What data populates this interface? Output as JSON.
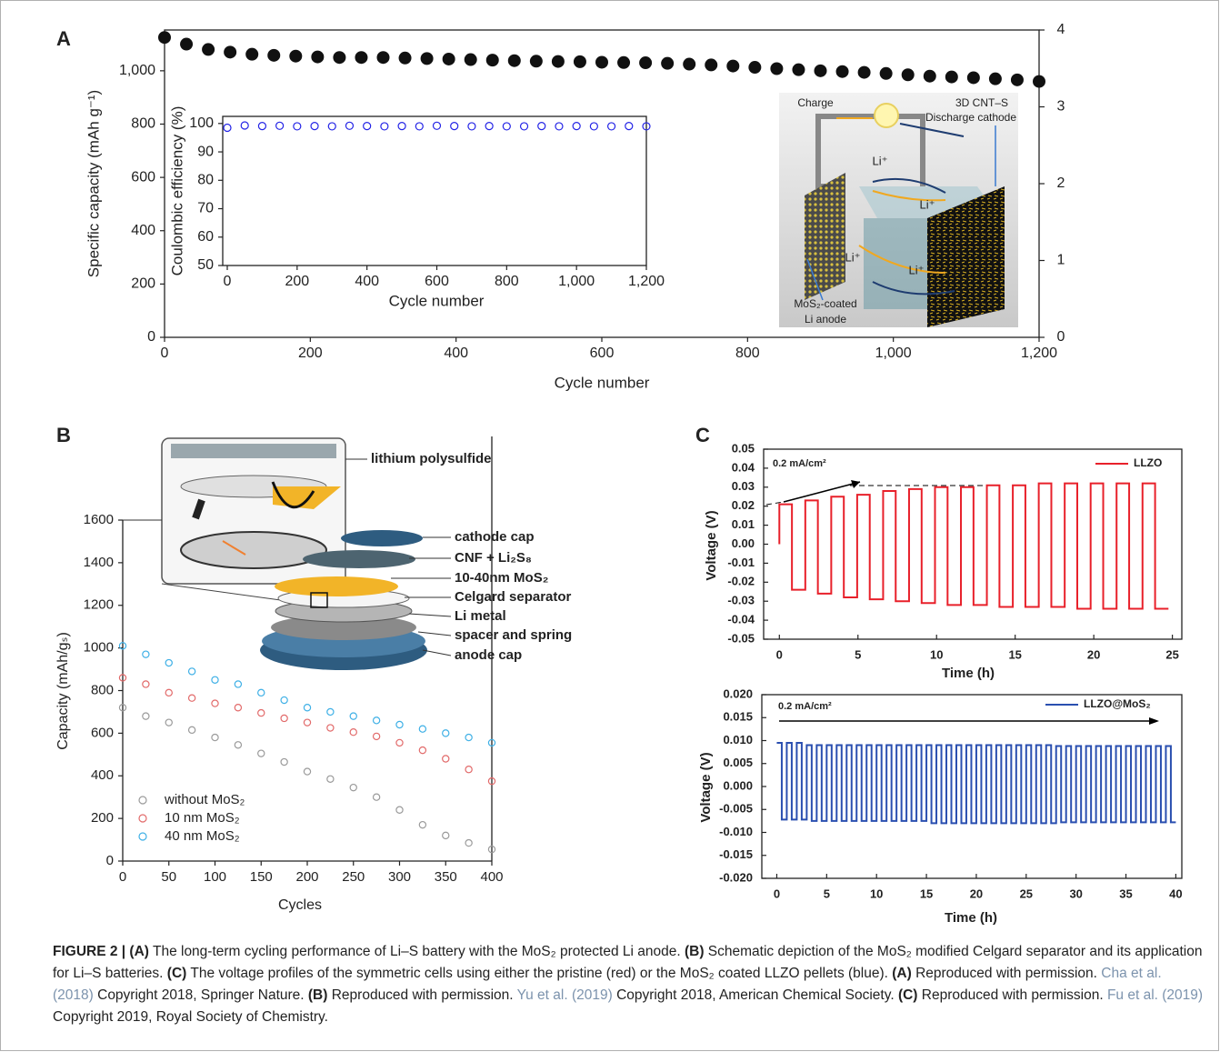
{
  "chart_data": [
    {
      "type": "scatter",
      "panel": "A",
      "xlabel": "Cycle number",
      "ylabel": "Specific capacity (mAh g⁻¹)",
      "color": "#111111",
      "hollow": false,
      "x": [
        0,
        30,
        60,
        90,
        120,
        150,
        180,
        210,
        240,
        270,
        300,
        330,
        360,
        390,
        420,
        450,
        480,
        510,
        540,
        570,
        600,
        630,
        660,
        690,
        720,
        750,
        780,
        810,
        840,
        870,
        900,
        930,
        960,
        990,
        1020,
        1050,
        1080,
        1110,
        1140,
        1170,
        1200
      ],
      "values": [
        1125,
        1100,
        1080,
        1070,
        1062,
        1058,
        1055,
        1052,
        1050,
        1050,
        1050,
        1048,
        1046,
        1044,
        1042,
        1040,
        1038,
        1036,
        1035,
        1034,
        1032,
        1031,
        1030,
        1028,
        1025,
        1022,
        1018,
        1013,
        1008,
        1004,
        1000,
        997,
        994,
        990,
        985,
        980,
        977,
        974,
        970,
        966,
        960
      ],
      "xlim": [
        0,
        1200
      ],
      "xticks": [
        0,
        200,
        400,
        600,
        800,
        {
          "value": 1000,
          "label": "1,000"
        },
        {
          "value": 1200,
          "label": "1,200"
        }
      ],
      "ylim": [
        0,
        1153
      ],
      "yticks": [
        0,
        200,
        400,
        600,
        800,
        {
          "value": 1000,
          "label": "1,000"
        }
      ],
      "y2lim": [
        0,
        4
      ],
      "y2ticks": [
        0,
        1,
        2,
        3,
        4
      ],
      "annotations": [
        {
          "text": "Charge"
        },
        {
          "text": "3D CNT–S"
        },
        {
          "text": "Discharge cathode"
        },
        {
          "text": "Li⁺"
        },
        {
          "text": "Li⁺"
        },
        {
          "text": "Li⁺"
        },
        {
          "text": "Li⁺"
        },
        {
          "text": "MoS₂-coated"
        },
        {
          "text": "Li anode"
        }
      ]
    },
    {
      "type": "scatter",
      "xlabel": "Cycle number",
      "ylabel": "Coulombic efficiency (%)",
      "color": "#2323e6",
      "hollow": true,
      "x": [
        0,
        50,
        100,
        150,
        200,
        250,
        300,
        350,
        400,
        450,
        500,
        550,
        600,
        650,
        700,
        750,
        800,
        850,
        900,
        950,
        1000,
        1050,
        1100,
        1150,
        1200
      ],
      "values": [
        98.5,
        99.3,
        99.1,
        99.2,
        99,
        99.1,
        99,
        99.2,
        99.1,
        99,
        99.1,
        99,
        99.2,
        99.1,
        99,
        99.1,
        99,
        99,
        99.1,
        99,
        99.1,
        99,
        99,
        99.1,
        99
      ],
      "xlim": [
        0,
        1200
      ],
      "xticks": [
        0,
        200,
        400,
        600,
        800,
        {
          "value": 1000,
          "label": "1,000"
        },
        {
          "value": 1200,
          "label": "1,200"
        }
      ],
      "ylim": [
        50,
        102.5
      ],
      "yticks": [
        50,
        60,
        70,
        80,
        90,
        100
      ]
    },
    {
      "type": "scatter",
      "panel": "B",
      "xlabel": "Cycles",
      "ylabel": "Capacity (mAh/gₛ)",
      "hollow": true,
      "legend": "lower left",
      "x": [
        0,
        25,
        50,
        75,
        100,
        125,
        150,
        175,
        200,
        225,
        250,
        275,
        300,
        325,
        350,
        375,
        400
      ],
      "series": [
        {
          "name": "without MoS₂",
          "color": "#9a9a9a",
          "values": [
            720,
            680,
            650,
            615,
            580,
            545,
            505,
            465,
            420,
            385,
            345,
            300,
            240,
            170,
            120,
            85,
            55
          ]
        },
        {
          "name": "10 nm MoS₂",
          "color": "#e26a6a",
          "values": [
            860,
            830,
            790,
            765,
            740,
            720,
            695,
            670,
            650,
            625,
            605,
            585,
            555,
            520,
            480,
            430,
            375
          ]
        },
        {
          "name": "40 nm MoS₂",
          "color": "#3fb0e6",
          "values": [
            1010,
            970,
            930,
            890,
            850,
            830,
            790,
            755,
            720,
            700,
            680,
            660,
            640,
            620,
            600,
            580,
            555
          ]
        }
      ],
      "xlim": [
        0,
        400
      ],
      "xticks": [
        0,
        50,
        100,
        150,
        200,
        250,
        300,
        350,
        400
      ],
      "ylim": [
        0,
        1600
      ],
      "yticks": [
        0,
        200,
        400,
        600,
        800,
        1000,
        1200,
        1400,
        1600
      ],
      "annotations": [
        {
          "text": "lithium polysulfide"
        },
        {
          "text": "cathode cap"
        },
        {
          "text": "CNF + Li₂S₈"
        },
        {
          "text": "10-40nm MoS₂",
          "color": "#e8202a"
        },
        {
          "text": "Celgard separator"
        },
        {
          "text": "Li metal"
        },
        {
          "text": "spacer and spring"
        },
        {
          "text": "anode cap"
        }
      ]
    },
    {
      "type": "line",
      "panel": "C",
      "xlabel": "Time (h)",
      "ylabel": "Voltage (V)",
      "legend": "upper right",
      "x": [
        0,
        0,
        0.8,
        0.8,
        1.65,
        1.65,
        2.45,
        2.45,
        3.3,
        3.3,
        4.1,
        4.1,
        4.95,
        4.95,
        5.75,
        5.75,
        6.6,
        6.6,
        7.4,
        7.4,
        8.25,
        8.25,
        9.05,
        9.05,
        9.9,
        9.9,
        10.7,
        10.7,
        11.55,
        11.55,
        12.35,
        12.35,
        13.2,
        13.2,
        14,
        14,
        14.85,
        14.85,
        15.65,
        15.65,
        16.5,
        16.5,
        17.3,
        17.3,
        18.15,
        18.15,
        18.95,
        18.95,
        19.8,
        19.8,
        20.6,
        20.6,
        21.45,
        21.45,
        22.25,
        22.25,
        23.1,
        23.1,
        23.9,
        23.9,
        24.75
      ],
      "series": [
        {
          "name": "LLZO",
          "color": "#e8202a",
          "values": [
            0,
            0.021,
            0.021,
            -0.024,
            -0.024,
            0.023,
            0.023,
            -0.026,
            -0.026,
            0.025,
            0.025,
            -0.028,
            -0.028,
            0.026,
            0.026,
            -0.029,
            -0.029,
            0.028,
            0.028,
            -0.03,
            -0.03,
            0.029,
            0.029,
            -0.031,
            -0.031,
            0.03,
            0.03,
            -0.032,
            -0.032,
            0.03,
            0.03,
            -0.032,
            -0.032,
            0.031,
            0.031,
            -0.033,
            -0.033,
            0.031,
            0.031,
            -0.033,
            -0.033,
            0.032,
            0.032,
            -0.033,
            -0.033,
            0.032,
            0.032,
            -0.034,
            -0.034,
            0.032,
            0.032,
            -0.034,
            -0.034,
            0.032,
            0.032,
            -0.034,
            -0.034,
            0.032,
            0.032,
            -0.034,
            -0.034
          ]
        }
      ],
      "xlim": [
        -1,
        25.6
      ],
      "xticks": [
        0,
        5,
        10,
        15,
        20,
        25
      ],
      "ylim": [
        -0.05,
        0.05
      ],
      "yticks": [
        0.05,
        0.04,
        0.03,
        0.02,
        0.01,
        {
          "value": 0,
          "label": "0.00"
        },
        -0.01,
        -0.02,
        -0.03,
        -0.04,
        -0.05
      ],
      "annotations": [
        {
          "text": "0.2 mA/cm²"
        }
      ]
    },
    {
      "type": "line",
      "xlabel": "Time (h)",
      "ylabel": "Voltage (V)",
      "legend": "upper right",
      "x": [
        0,
        0.5,
        0.5,
        1,
        1,
        1.5,
        1.5,
        2,
        2,
        2.5,
        2.5,
        3,
        3,
        3.5,
        3.5,
        4,
        4,
        4.5,
        4.5,
        5,
        5,
        5.5,
        5.5,
        6,
        6,
        6.5,
        6.5,
        7,
        7,
        7.5,
        7.5,
        8,
        8,
        8.5,
        8.5,
        9,
        9,
        9.5,
        9.5,
        10,
        10,
        10.5,
        10.5,
        11,
        11,
        11.5,
        11.5,
        12,
        12,
        12.5,
        12.5,
        13,
        13,
        13.5,
        13.5,
        14,
        14,
        14.5,
        14.5,
        15,
        15,
        15.5,
        15.5,
        16,
        16,
        16.5,
        16.5,
        17,
        17,
        17.5,
        17.5,
        18,
        18,
        18.5,
        18.5,
        19,
        19,
        19.5,
        19.5,
        20,
        20,
        20.5,
        20.5,
        21,
        21,
        21.5,
        21.5,
        22,
        22,
        22.5,
        22.5,
        23,
        23,
        23.5,
        23.5,
        24,
        24,
        24.5,
        24.5,
        25,
        25,
        25.5,
        25.5,
        26,
        26,
        26.5,
        26.5,
        27,
        27,
        27.5,
        27.5,
        28,
        28,
        28.5,
        28.5,
        29,
        29,
        29.5,
        29.5,
        30,
        30,
        30.5,
        30.5,
        31,
        31,
        31.5,
        31.5,
        32,
        32,
        32.5,
        32.5,
        33,
        33,
        33.5,
        33.5,
        34,
        34,
        34.5,
        34.5,
        35,
        35,
        35.5,
        35.5,
        36,
        36,
        36.5,
        36.5,
        37,
        37,
        37.5,
        37.5,
        38,
        38,
        38.5,
        38.5,
        39,
        39,
        39.5,
        39.5,
        40
      ],
      "series": [
        {
          "name": "LLZO@MoS₂",
          "color": "#2a4fb0",
          "values": [
            0.0095,
            0.0095,
            -0.0072,
            -0.0072,
            0.0095,
            0.0095,
            -0.0072,
            -0.0072,
            0.0095,
            0.0095,
            -0.0072,
            -0.0072,
            0.009,
            0.009,
            -0.0075,
            -0.0075,
            0.009,
            0.009,
            -0.0075,
            -0.0075,
            0.009,
            0.009,
            -0.0075,
            -0.0075,
            0.009,
            0.009,
            -0.0075,
            -0.0075,
            0.009,
            0.009,
            -0.0075,
            -0.0075,
            0.009,
            0.009,
            -0.0075,
            -0.0075,
            0.009,
            0.009,
            -0.0075,
            -0.0075,
            0.009,
            0.009,
            -0.0075,
            -0.0075,
            0.009,
            0.009,
            -0.0075,
            -0.0075,
            0.009,
            0.009,
            -0.0075,
            -0.0075,
            0.009,
            0.009,
            -0.0075,
            -0.0075,
            0.009,
            0.009,
            -0.0075,
            -0.0075,
            0.009,
            0.009,
            -0.008,
            -0.008,
            0.009,
            0.009,
            -0.008,
            -0.008,
            0.009,
            0.009,
            -0.008,
            -0.008,
            0.009,
            0.009,
            -0.008,
            -0.008,
            0.009,
            0.009,
            -0.008,
            -0.008,
            0.009,
            0.009,
            -0.008,
            -0.008,
            0.009,
            0.009,
            -0.008,
            -0.008,
            0.009,
            0.009,
            -0.008,
            -0.008,
            0.009,
            0.009,
            -0.008,
            -0.008,
            0.009,
            0.009,
            -0.008,
            -0.008,
            0.009,
            0.009,
            -0.008,
            -0.008,
            0.009,
            0.009,
            -0.008,
            -0.008,
            0.009,
            0.009,
            -0.008,
            -0.008,
            0.0088,
            0.0088,
            -0.0078,
            -0.0078,
            0.0088,
            0.0088,
            -0.0078,
            -0.0078,
            0.0088,
            0.0088,
            -0.0078,
            -0.0078,
            0.0088,
            0.0088,
            -0.0078,
            -0.0078,
            0.0088,
            0.0088,
            -0.0078,
            -0.0078,
            0.0088,
            0.0088,
            -0.0078,
            -0.0078,
            0.0088,
            0.0088,
            -0.0078,
            -0.0078,
            0.0088,
            0.0088,
            -0.0078,
            -0.0078,
            0.0088,
            0.0088,
            -0.0078,
            -0.0078,
            0.0088,
            0.0088,
            -0.0078,
            -0.0078,
            0.0088,
            0.0088,
            -0.0078,
            -0.0078,
            0.0088,
            0.0088,
            -0.0078,
            -0.0078
          ]
        }
      ],
      "xlim": [
        -1.5,
        40.6
      ],
      "xticks": [
        0,
        5,
        10,
        15,
        20,
        25,
        30,
        35,
        40
      ],
      "ylim": [
        -0.02,
        0.02
      ],
      "yticks": [
        {
          "value": 0.02,
          "label": "0.020"
        },
        0.015,
        {
          "value": 0.01,
          "label": "0.010"
        },
        0.005,
        {
          "value": 0,
          "label": "0.000"
        },
        -0.005,
        {
          "value": -0.01,
          "label": "-0.010"
        },
        -0.015,
        {
          "value": -0.02,
          "label": "-0.020"
        }
      ],
      "annotations": [
        {
          "text": "0.2 mA/cm²"
        }
      ]
    }
  ],
  "caption": [
    {
      "text": "FIGURE 2 | (A)",
      "style": "bold"
    },
    {
      "text": " The long-term cycling performance of Li–S battery with the MoS₂ protected Li anode. "
    },
    {
      "text": "(B)",
      "style": "bold"
    },
    {
      "text": " Schematic depiction of the MoS₂ modified Celgard separator and its application for Li–S batteries. "
    },
    {
      "text": "(C)",
      "style": "bold"
    },
    {
      "text": " The voltage profiles of the symmetric cells using either the pristine (red) or the MoS₂ coated LLZO pellets (blue). "
    },
    {
      "text": "(A)",
      "style": "bold"
    },
    {
      "text": " Reproduced with permission. "
    },
    {
      "text": "Cha et al. (2018)",
      "style": "link"
    },
    {
      "text": " Copyright 2018, Springer Nature. "
    },
    {
      "text": "(B)",
      "style": "bold"
    },
    {
      "text": " Reproduced with permission. "
    },
    {
      "text": "Yu et al. (2019)",
      "style": "link"
    },
    {
      "text": " Copyright 2018, American Chemical Society. "
    },
    {
      "text": "(C)",
      "style": "bold"
    },
    {
      "text": " Reproduced with permission. "
    },
    {
      "text": "Fu et al. (2019)",
      "style": "link"
    },
    {
      "text": " Copyright 2019, Royal Society of Chemistry."
    }
  ]
}
